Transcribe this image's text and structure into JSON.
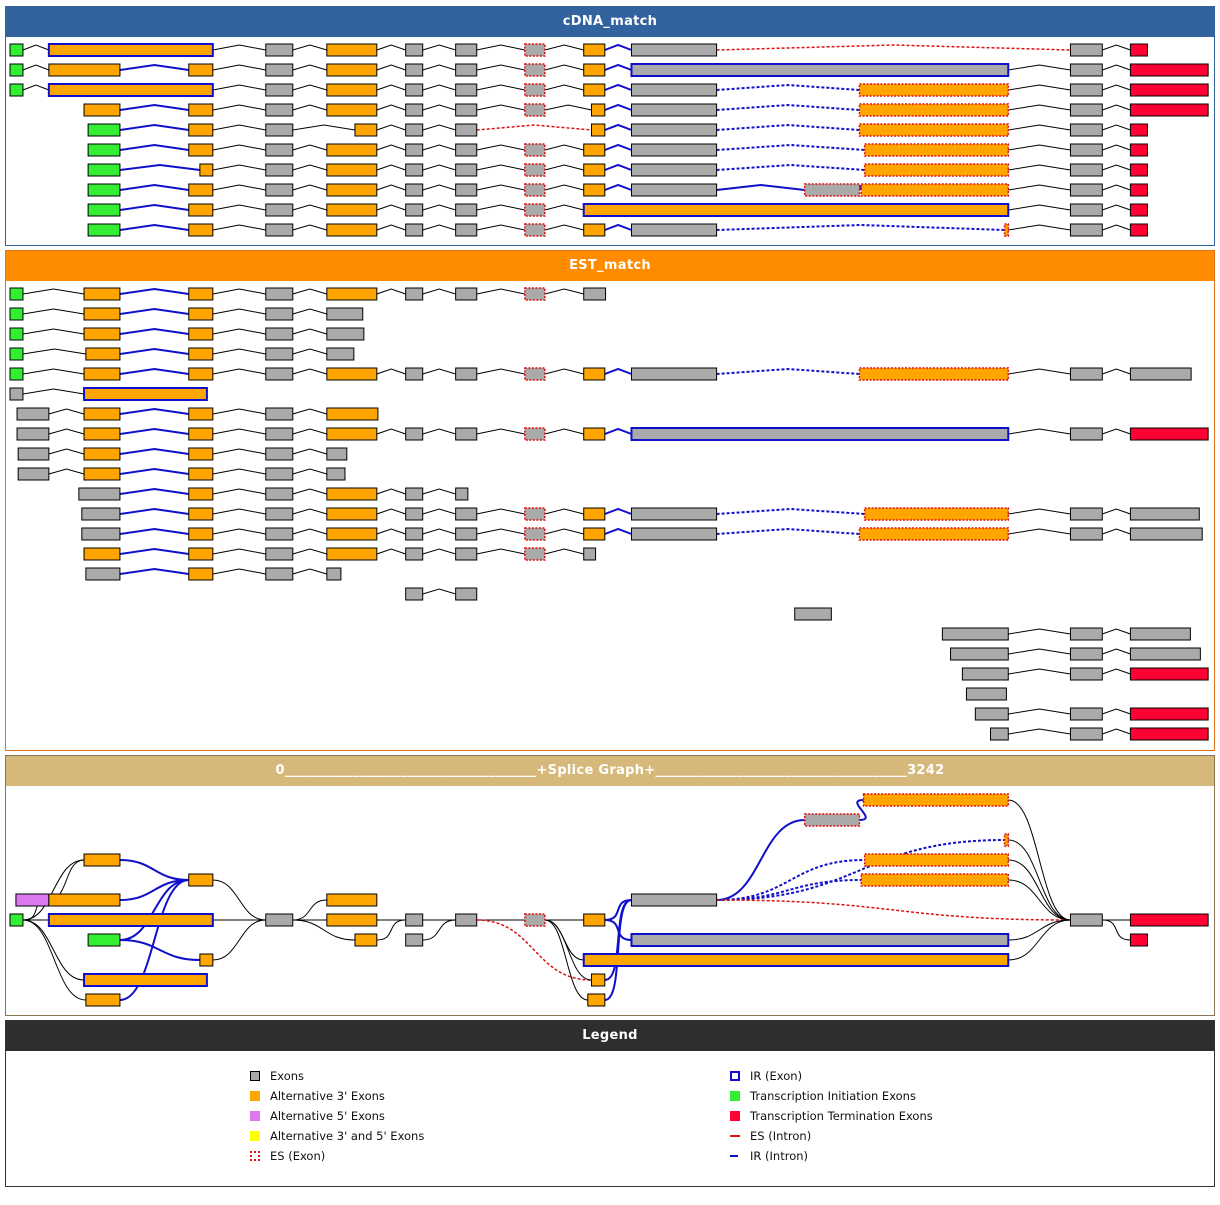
{
  "genome_length": 3242,
  "colors": {
    "ex": "#aaaaaa",
    "a3": "#ffa500",
    "a5": "#dd77ee",
    "a35": "#ffff00",
    "ti": "#33ee33",
    "tt": "#ff0033",
    "ir": "#1010cc",
    "es": "#dd1111",
    "intron": "#000000"
  },
  "cdna": {
    "title": "cDNA_match",
    "tracks": [
      {
        "exons": [
          "0-35:ti",
          "105-548:a3:ir",
          "691-764:ex",
          "856-991:a3",
          "1069-1115:ex",
          "1204-1261:ex",
          "1391-1445:ex:es",
          "1550-1607:a3",
          "1679-1909:ex",
          "2865-2951:ex",
          "3027-3073:tt"
        ],
        "introns": "nnnnnnnbrn"
      },
      {
        "exons": [
          "0-35:ti",
          "105-297:a3",
          "483-548:a3",
          "691-764:ex",
          "856-991:a3",
          "1069-1115:ex",
          "1204-1261:ex",
          "1391-1445:ex:es",
          "1550-1607:a3",
          "1679-2697:ex:ir",
          "2865-2951:ex",
          "3027-3237:tt"
        ],
        "introns": "nbnnnnnnbnn"
      },
      {
        "exons": [
          "0-35:ti",
          "105-548:a3:ir",
          "691-764:ex",
          "856-991:a3",
          "1069-1115:ex",
          "1204-1261:ex",
          "1391-1445:ex:es",
          "1550-1607:a3",
          "1679-1909:ex",
          "2295-2697:a3:es",
          "2865-2951:ex",
          "3027-3237:tt"
        ],
        "introns": "nnnnnnnbdnn"
      },
      {
        "exons": [
          "200-297:a3",
          "483-548:a3",
          "691-764:ex",
          "856-991:a3",
          "1069-1115:ex",
          "1204-1261:ex",
          "1391-1445:ex:es",
          "1571-1607:a3",
          "1679-1909:ex",
          "2295-2697:a3:es",
          "2865-2951:ex",
          "3027-3237:tt"
        ],
        "introns": "bnnnnnnbdnn"
      },
      {
        "exons": [
          "211-297:ti",
          "483-548:a3",
          "691-764:ex",
          "932-991:a3",
          "1069-1115:ex",
          "1204-1261:ex",
          "1571-1607:a3",
          "1679-1909:ex",
          "2295-2697:a3:es",
          "2865-2951:ex",
          "3027-3073:tt"
        ],
        "introns": "bnnnnrbdnn"
      },
      {
        "exons": [
          "211-297:ti",
          "483-548:a3",
          "691-764:ex",
          "856-991:a3",
          "1069-1115:ex",
          "1204-1261:ex",
          "1391-1445:ex:es",
          "1550-1607:a3",
          "1679-1909:ex",
          "2309-2697:a3:es",
          "2865-2951:ex",
          "3027-3073:tt"
        ],
        "introns": "bnnnnnnbdnn"
      },
      {
        "exons": [
          "211-297:ti",
          "513-548:a3",
          "691-764:ex",
          "856-991:a3",
          "1069-1115:ex",
          "1204-1261:ex",
          "1391-1445:ex:es",
          "1550-1607:a3",
          "1679-1909:ex",
          "2309-2697:a3:es",
          "2865-2951:ex",
          "3027-3073:tt"
        ],
        "introns": "bnnnnnnbdnn"
      },
      {
        "exons": [
          "211-297:ti",
          "483-548:a3",
          "691-764:ex",
          "856-991:a3",
          "1069-1115:ex",
          "1204-1261:ex",
          "1391-1445:ex:es",
          "1550-1607:a3",
          "1679-1909:ex",
          "2147-2295:ex:es",
          "2300-2697:a3:es",
          "2865-2951:ex",
          "3027-3073:tt"
        ],
        "introns": "bnnnnnnbbbnn"
      },
      {
        "exons": [
          "211-297:ti",
          "483-548:a3",
          "691-764:ex",
          "856-991:a3",
          "1069-1115:ex",
          "1204-1261:ex",
          "1391-1445:ex:es",
          "1550-2697:a3:ir",
          "2865-2951:ex",
          "3027-3073:tt"
        ],
        "introns": "bnnnnnnnn"
      },
      {
        "exons": [
          "211-297:ti",
          "483-548:a3",
          "691-764:ex",
          "856-991:a3",
          "1069-1115:ex",
          "1204-1261:ex",
          "1391-1445:ex:es",
          "1550-1607:a3",
          "1679-1909:ex",
          "2687-2697:a3:es",
          "2865-2951:ex",
          "3027-3073:tt"
        ],
        "introns": "bnnnnnnbdnn"
      }
    ]
  },
  "est": {
    "title": "EST_match",
    "tracks": [
      {
        "exons": [
          "0-35:ti",
          "200-297:a3",
          "483-548:a3",
          "691-764:ex",
          "856-991:a3",
          "1069-1115:ex",
          "1204-1261:ex",
          "1391-1445:ex:es",
          "1550-1609:ex"
        ],
        "introns": "nbnnnnnn"
      },
      {
        "exons": [
          "0-35:ti",
          "200-297:a3",
          "483-548:a3",
          "691-764:ex",
          "856-953:ex"
        ],
        "introns": "nbnn"
      },
      {
        "exons": [
          "0-35:ti",
          "200-297:a3",
          "483-548:a3",
          "691-764:ex",
          "856-956:ex"
        ],
        "introns": "nbnn"
      },
      {
        "exons": [
          "0-35:ti",
          "205-297:a3",
          "483-548:a3",
          "691-764:ex",
          "856-929:ex"
        ],
        "introns": "nbnn"
      },
      {
        "exons": [
          "0-35:ti",
          "200-297:a3",
          "483-548:a3",
          "691-764:ex",
          "856-991:a3",
          "1069-1115:ex",
          "1204-1261:ex",
          "1391-1445:ex:es",
          "1550-1607:a3",
          "1679-1909:ex",
          "2295-2697:a3:es",
          "2865-2951:ex",
          "3027-3191:ex"
        ],
        "introns": "nbnnnnnnbdnn"
      },
      {
        "exons": [
          "0-35:ex",
          "200-532:a3:ir"
        ],
        "introns": "n"
      },
      {
        "exons": [
          "19-105:ex",
          "200-297:a3",
          "483-548:a3",
          "691-764:ex",
          "856-994:a3"
        ],
        "introns": "nbnn"
      },
      {
        "exons": [
          "19-105:ex",
          "200-297:a3",
          "483-548:a3",
          "691-764:ex",
          "856-991:a3",
          "1069-1115:ex",
          "1204-1261:ex",
          "1391-1445:ex:es",
          "1550-1607:a3",
          "1679-2697:ex:ir",
          "2865-2951:ex",
          "3027-3237:tt"
        ],
        "introns": "nbnnnnnnbnn"
      },
      {
        "exons": [
          "22-105:ex",
          "200-297:a3",
          "483-548:a3",
          "691-764:ex",
          "856-910:ex"
        ],
        "introns": "nbnn"
      },
      {
        "exons": [
          "22-105:ex",
          "200-297:a3",
          "483-548:a3",
          "691-764:ex",
          "856-905:ex"
        ],
        "introns": "nbnn"
      },
      {
        "exons": [
          "186-297:ex",
          "483-548:a3",
          "691-764:ex",
          "856-991:a3",
          "1069-1115:ex",
          "1204-1237:ex"
        ],
        "introns": "bnnnn"
      },
      {
        "exons": [
          "194-297:ex",
          "483-548:a3",
          "691-764:ex",
          "856-991:a3",
          "1069-1115:ex",
          "1204-1261:ex",
          "1391-1445:ex:es",
          "1550-1607:a3",
          "1679-1909:ex",
          "2309-2697:a3:es",
          "2865-2951:ex",
          "3027-3213:ex"
        ],
        "introns": "bnnnnnnbdnn"
      },
      {
        "exons": [
          "194-297:ex",
          "483-548:a3",
          "691-764:ex",
          "856-991:a3",
          "1069-1115:ex",
          "1204-1261:ex",
          "1391-1445:ex:es",
          "1550-1607:a3",
          "1679-1909:ex",
          "2295-2697:a3:es",
          "2865-2951:ex",
          "3027-3221:ex"
        ],
        "introns": "bnnnnnnbdnn"
      },
      {
        "exons": [
          "200-297:a3",
          "483-548:a3",
          "691-764:ex",
          "856-991:a3",
          "1069-1115:ex",
          "1204-1261:ex",
          "1391-1445:ex:es",
          "1550-1582:ex"
        ],
        "introns": "bnnnnnn"
      },
      {
        "exons": [
          "205-297:ex",
          "483-548:a3",
          "691-764:ex",
          "856-894:ex"
        ],
        "introns": "bnn"
      },
      {
        "exons": [
          "1069-1115:ex",
          "1204-1261:ex"
        ],
        "introns": "n"
      },
      {
        "exons": [
          "2120-2219:ex"
        ],
        "introns": ""
      },
      {
        "exons": [
          "2519-2697:ex",
          "2865-2951:ex",
          "3027-3189:ex"
        ],
        "introns": "nn"
      },
      {
        "exons": [
          "2541-2697:ex",
          "2865-2951:ex",
          "3027-3216:ex"
        ],
        "introns": "nn"
      },
      {
        "exons": [
          "2573-2697:ex",
          "2865-2951:ex",
          "3027-3237:tt"
        ],
        "introns": "nn"
      },
      {
        "exons": [
          "2584-2692:ex"
        ],
        "introns": ""
      },
      {
        "exons": [
          "2608-2697:ex",
          "2865-2951:ex",
          "3027-3237:tt"
        ],
        "introns": "nn"
      },
      {
        "exons": [
          "2649-2697:ex",
          "2865-2951:ex",
          "3027-3237:tt"
        ],
        "introns": "nn"
      }
    ]
  },
  "splice_graph": {
    "title": "0_____________________________________+Splice Graph+_____________________________________3242",
    "nodes": [
      "0-35:ti:6",
      "16-105:a5:5",
      "105-297:a3:5",
      "105-548:a3:6:ir",
      "200-297:a3:3",
      "211-297:ti:7",
      "200-532:a3:9:ir",
      "205-297:a3:10",
      "483-548:a3:4",
      "513-548:a3:8",
      "691-764:ex:6",
      "856-991:a3:5",
      "856-991:a3:6",
      "932-991:a3:7",
      "1069-1115:ex:6",
      "1069-1115:ex:7",
      "1204-1261:ex:6",
      "1391-1445:ex:6:es",
      "1550-1607:a3:6",
      "1550-2697:a3:8:ir",
      "1571-1607:a3:9",
      "1561-1607:a3:10",
      "1679-1909:ex:5",
      "1679-2697:ex:7:ir",
      "2147-2295:ex:1:es",
      "2306-2697:a3:0:es",
      "2687-2697:a3:2:es",
      "2309-2697:a3:3:es",
      "2300-2697:a3:4:es",
      "2865-2951:ex:6",
      "3027-3237:tt:6",
      "3027-3073:tt:7"
    ],
    "edges": [
      "0-4:n",
      "0-2:n",
      "0-3:n",
      "0-6:n",
      "0-7:n",
      "1-4:n",
      "4-8:b",
      "2-8:b",
      "5-8:b",
      "5-9:b",
      "7-8:b",
      "3-10:n",
      "8-10:n",
      "9-10:n",
      "10-11:n",
      "10-12:n",
      "10-13:n",
      "12-14:n",
      "13-14:n",
      "14-16:n",
      "15-16:n",
      "16-17:n",
      "16-20:r",
      "17-18:n",
      "17-19:n",
      "17-20:n",
      "17-21:n",
      "18-22:b",
      "18-23:b",
      "20-22:b",
      "21-22:b",
      "22-24:b",
      "24-25:b",
      "22-26:d",
      "22-27:d",
      "22-28:d",
      "22-29:r",
      "25-29:n",
      "26-29:n",
      "27-29:n",
      "28-29:n",
      "23-29:n",
      "19-29:n",
      "29-30:n",
      "29-31:n"
    ]
  },
  "legend": {
    "title": "Legend",
    "left": [
      {
        "label": "Exons",
        "icon": "ex"
      },
      {
        "label": "Alternative 3' Exons",
        "icon": "a3"
      },
      {
        "label": "Alternative 5' Exons",
        "icon": "a5"
      },
      {
        "label": "Alternative 3' and 5' Exons",
        "icon": "a35"
      },
      {
        "label": "ES (Exon)",
        "icon": "es-box"
      }
    ],
    "right": [
      {
        "label": "IR (Exon)",
        "icon": "ir-box"
      },
      {
        "label": "Transcription Initiation Exons",
        "icon": "ti"
      },
      {
        "label": "Transcription Termination Exons",
        "icon": "tt"
      },
      {
        "label": "ES (Intron)",
        "icon": "es-line"
      },
      {
        "label": "IR (Intron)",
        "icon": "ir-line"
      }
    ]
  }
}
